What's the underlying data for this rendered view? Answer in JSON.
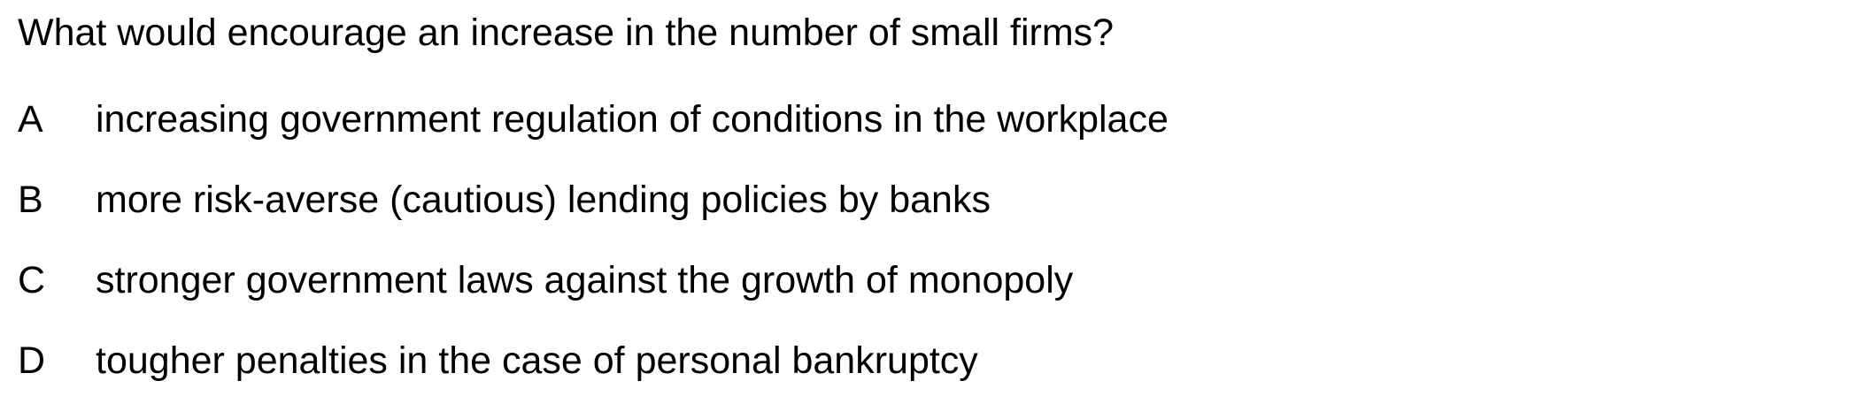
{
  "question": {
    "text": "What would encourage an increase in the number of small firms?"
  },
  "options": [
    {
      "letter": "A",
      "text": "increasing government regulation of conditions in the workplace"
    },
    {
      "letter": "B",
      "text": "more risk-averse (cautious) lending policies by banks"
    },
    {
      "letter": "C",
      "text": "stronger government laws against the growth of monopoly"
    },
    {
      "letter": "D",
      "text": "tougher penalties in the case of personal bankruptcy"
    }
  ]
}
